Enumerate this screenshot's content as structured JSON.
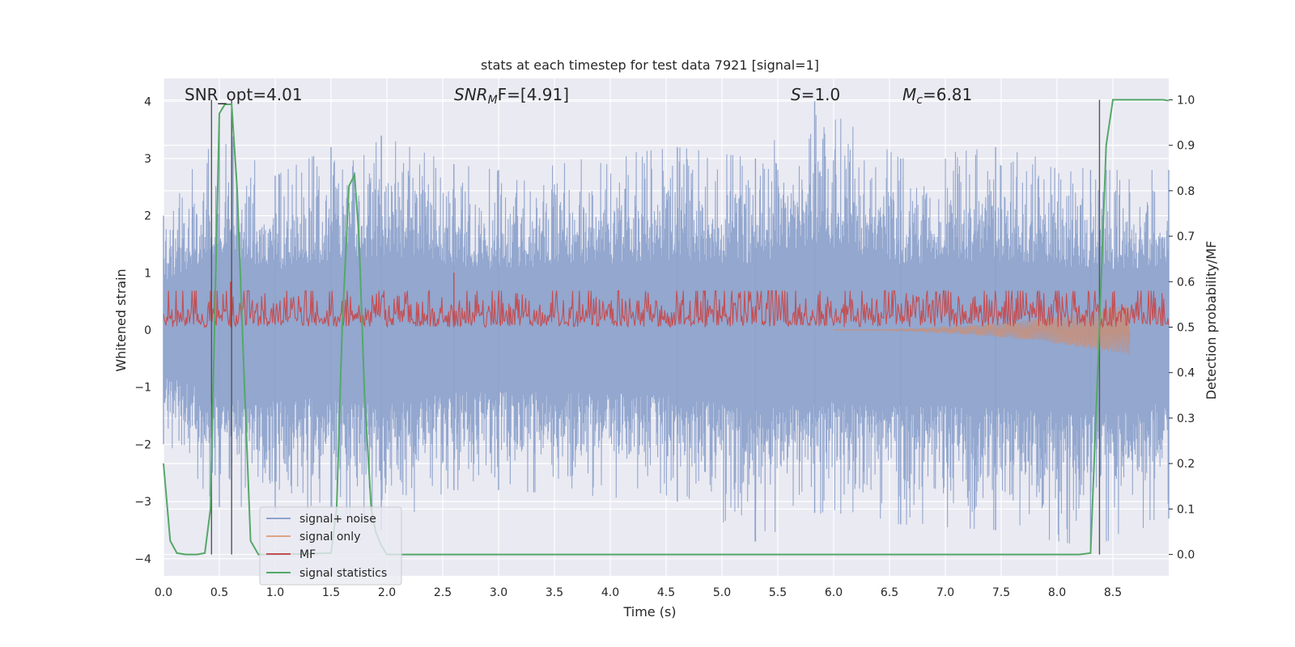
{
  "chart_data": {
    "type": "line",
    "title": "stats at each timestep for test data 7921 [signal=1]",
    "xlabel": "Time (s)",
    "ylabel_left": "Whitened strain",
    "ylabel_right": "Detection probability/MF",
    "xlim": [
      0.0,
      9.0
    ],
    "ylim_left": [
      -4.3,
      4.4
    ],
    "ylim_right": [
      -0.047,
      1.047
    ],
    "x_ticks": [
      "0.0",
      "0.5",
      "1.0",
      "1.5",
      "2.0",
      "2.5",
      "3.0",
      "3.5",
      "4.0",
      "4.5",
      "5.0",
      "5.5",
      "6.0",
      "6.5",
      "7.0",
      "7.5",
      "8.0",
      "8.5"
    ],
    "y_ticks_left": [
      "−4",
      "−3",
      "−2",
      "−1",
      "0",
      "1",
      "2",
      "3",
      "4"
    ],
    "y_ticks_right": [
      "0.0",
      "0.1",
      "0.2",
      "0.3",
      "0.4",
      "0.5",
      "0.6",
      "0.7",
      "0.8",
      "0.9",
      "1.0"
    ],
    "grid": true,
    "legend_position": "lower-left",
    "annotations": {
      "snr_opt": "SNR_opt=4.01",
      "snr_mf_main": "SNR",
      "snr_mf_sub": "M",
      "snr_mf_rest": "F=[4.91]",
      "s_main": "S",
      "s_rest": "=1.0",
      "mc_main": "M",
      "mc_sub": "c",
      "mc_rest": "=6.81"
    },
    "vertical_markers_s": [
      0.43,
      0.61,
      8.38
    ],
    "series": [
      {
        "name": "signal+ noise",
        "color": "#8ea3cc",
        "kind": "noise band",
        "amplitude_envelope": [
          {
            "x": 0.0,
            "hi": 2.0,
            "lo": -2.0
          },
          {
            "x": 0.5,
            "hi": 3.6,
            "lo": -3.1
          },
          {
            "x": 1.0,
            "hi": 2.7,
            "lo": -3.2
          },
          {
            "x": 1.5,
            "hi": 3.2,
            "lo": -3.1
          },
          {
            "x": 1.95,
            "hi": 3.4,
            "lo": -3.5
          },
          {
            "x": 2.6,
            "hi": 2.9,
            "lo": -2.8
          },
          {
            "x": 3.0,
            "hi": 2.8,
            "lo": -2.8
          },
          {
            "x": 4.6,
            "hi": 3.2,
            "lo": -3.0
          },
          {
            "x": 5.3,
            "hi": 3.0,
            "lo": -3.7
          },
          {
            "x": 5.83,
            "hi": 4.0,
            "lo": -3.2
          },
          {
            "x": 6.6,
            "hi": 3.0,
            "lo": -3.4
          },
          {
            "x": 7.45,
            "hi": 3.2,
            "lo": -3.5
          },
          {
            "x": 8.3,
            "hi": 2.8,
            "lo": -3.8
          },
          {
            "x": 9.0,
            "hi": 2.8,
            "lo": -3.3
          }
        ]
      },
      {
        "name": "signal only",
        "color": "#dd8452",
        "kind": "chirp",
        "start_s": 6.0,
        "end_s": 8.65,
        "max_amplitude": 0.45
      },
      {
        "name": "MF",
        "color": "#c44e52",
        "axis": "right",
        "baseline": 0.5,
        "typical_peak": 0.57,
        "spikes": [
          {
            "x": 0.6,
            "y": 0.6
          },
          {
            "x": 2.6,
            "y": 0.62
          },
          {
            "x": 4.85,
            "y": 0.58
          }
        ]
      },
      {
        "name": "signal statistics",
        "color": "#55a868",
        "axis": "right",
        "x": [
          0.0,
          0.06,
          0.12,
          0.2,
          0.3,
          0.37,
          0.42,
          0.5,
          0.55,
          0.61,
          0.66,
          0.72,
          0.78,
          0.85,
          0.9,
          1.0,
          1.5,
          1.55,
          1.6,
          1.66,
          1.71,
          1.75,
          1.8,
          1.86,
          1.9,
          1.95,
          2.0,
          2.5,
          4.0,
          6.0,
          8.2,
          8.3,
          8.38,
          8.44,
          8.5,
          8.6,
          8.95,
          9.0
        ],
        "y": [
          0.2,
          0.03,
          0.003,
          0.0,
          0.0,
          0.003,
          0.1,
          0.97,
          0.99,
          0.99,
          0.8,
          0.4,
          0.03,
          0.0,
          0.0,
          0.0,
          0.003,
          0.1,
          0.5,
          0.81,
          0.835,
          0.7,
          0.35,
          0.1,
          0.05,
          0.02,
          0.0,
          0.0,
          0.0,
          0.0,
          0.0,
          0.003,
          0.5,
          0.9,
          1.0,
          1.0,
          1.0,
          0.998
        ]
      }
    ]
  }
}
